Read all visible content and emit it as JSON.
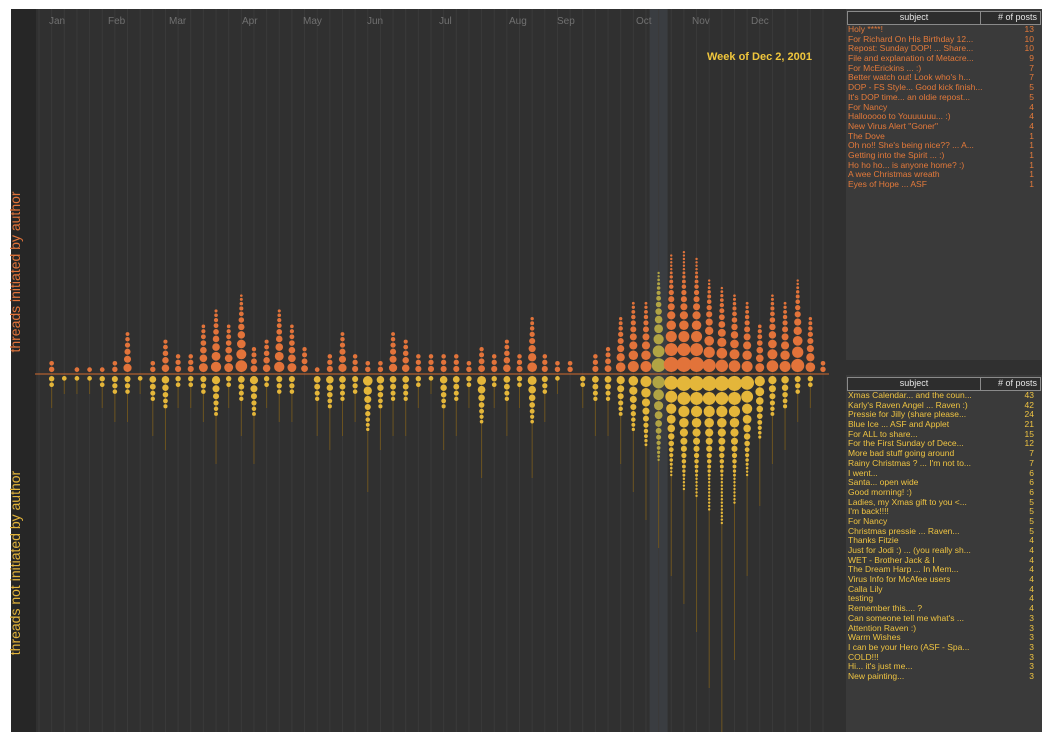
{
  "labels": {
    "top_axis": "threads initiated by author",
    "bottom_axis": "threads not initiated by author",
    "week": "Week of Dec 2, 2001"
  },
  "colors": {
    "background": "#303030",
    "initiated": "#e2733a",
    "not_initiated": "#e4b63a",
    "highlight": "#b1a444",
    "axis": "#d06a2e"
  },
  "months": [
    "Jan",
    "Feb",
    "Mar",
    "Apr",
    "May",
    "Jun",
    "Jul",
    "Aug",
    "Sep",
    "Oct",
    "Nov",
    "Dec"
  ],
  "chart_data": {
    "type": "scatter",
    "x_unit": "week of 2001",
    "highlighted_week": 49,
    "initiated": [
      0,
      2,
      0,
      1,
      1,
      1,
      2,
      6,
      0,
      2,
      5,
      3,
      3,
      7,
      9,
      7,
      11,
      4,
      5,
      9,
      7,
      4,
      1,
      3,
      6,
      3,
      2,
      2,
      6,
      5,
      3,
      3,
      3,
      3,
      2,
      4,
      3,
      5,
      3,
      8,
      3,
      2,
      2,
      0,
      3,
      4,
      8,
      10,
      10,
      14,
      17,
      18,
      16,
      13,
      12,
      11,
      10,
      7,
      11,
      10,
      13,
      8,
      2
    ],
    "not_initiated": [
      0,
      2,
      1,
      1,
      1,
      2,
      3,
      3,
      1,
      4,
      5,
      2,
      2,
      3,
      6,
      2,
      4,
      6,
      2,
      3,
      3,
      0,
      4,
      5,
      4,
      3,
      8,
      5,
      4,
      4,
      2,
      1,
      5,
      4,
      2,
      7,
      2,
      4,
      2,
      7,
      3,
      1,
      0,
      2,
      4,
      4,
      6,
      8,
      10,
      12,
      14,
      16,
      18,
      22,
      26,
      20,
      14,
      9,
      6,
      5,
      3,
      2,
      0
    ],
    "top_threads": {
      "columns": [
        "subject",
        "# of posts"
      ],
      "rows": [
        [
          "Holy ****!",
          "13"
        ],
        [
          "For Richard On His Birthday 12...",
          "10"
        ],
        [
          "Repost: Sunday DOP! ... Share...",
          "10"
        ],
        [
          "File and explanation of Metacre...",
          "9"
        ],
        [
          "For McErickins ... :)",
          "7"
        ],
        [
          "Better watch out! Look who's h...",
          "7"
        ],
        [
          "DOP - FS Style... Good kick finish...",
          "5"
        ],
        [
          "It's DOP time... an oldie repost...",
          "5"
        ],
        [
          "For Nancy",
          "4"
        ],
        [
          "Hallooooo to Youuuuuu... :)",
          "4"
        ],
        [
          "New Virus Alert \"Goner\"",
          "4"
        ],
        [
          "The Dove",
          "1"
        ],
        [
          "Oh no!! She's being nice?? ... A...",
          "1"
        ],
        [
          "Getting into the Spirit ... :)",
          "1"
        ],
        [
          "Ho ho ho... is anyone home? :)",
          "1"
        ],
        [
          "A wee Christmas wreath",
          "1"
        ],
        [
          "Eyes of Hope ... ASF",
          "1"
        ]
      ]
    },
    "bottom_threads": {
      "columns": [
        "subject",
        "# of posts"
      ],
      "rows": [
        [
          "Xmas Calendar... and the coun...",
          "43"
        ],
        [
          "Karly's Raven Angel ... Raven :)",
          "42"
        ],
        [
          "Pressie for Jilly (share please...",
          "24"
        ],
        [
          "Blue Ice ... ASF and Applet",
          "21"
        ],
        [
          "For ALL to share...",
          "15"
        ],
        [
          "For the First Sunday of Dece...",
          "12"
        ],
        [
          "More bad stuff going around",
          "7"
        ],
        [
          "Rainy Christmas ? ... I'm not to...",
          "7"
        ],
        [
          "I went...",
          "6"
        ],
        [
          "Santa... open wide",
          "6"
        ],
        [
          "Good morning! :)",
          "6"
        ],
        [
          "Ladies, my Xmas gift to you <...",
          "5"
        ],
        [
          "I'm back!!!!",
          "5"
        ],
        [
          "For Nancy",
          "5"
        ],
        [
          "Christmas pressie ... Raven...",
          "5"
        ],
        [
          "Thanks Fitzie",
          "4"
        ],
        [
          "Just for Jodi :) ... (you really sh...",
          "4"
        ],
        [
          "WET - Brother Jack & I",
          "4"
        ],
        [
          "The Dream Harp ... In Mem...",
          "4"
        ],
        [
          "Virus Info for McAfee users",
          "4"
        ],
        [
          "Calla Lily",
          "4"
        ],
        [
          "testing",
          "4"
        ],
        [
          "Remember this.... ?",
          "4"
        ],
        [
          "Can someone tell me what's ...",
          "3"
        ],
        [
          "Attention Raven :)",
          "3"
        ],
        [
          "Warm Wishes",
          "3"
        ],
        [
          "I can be your Hero (ASF - Spa...",
          "3"
        ],
        [
          "COLD!!!",
          "3"
        ],
        [
          "Hi... it's just me...",
          "3"
        ],
        [
          "New painting...",
          "3"
        ]
      ]
    }
  }
}
